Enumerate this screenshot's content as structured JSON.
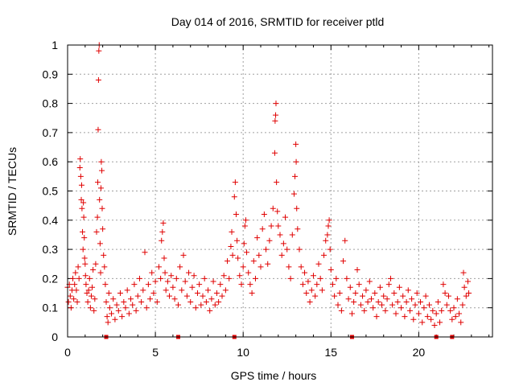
{
  "chart_data": {
    "type": "scatter",
    "title": "Day 014 of 2016, SRMTID for receiver ptld",
    "xlabel": "GPS time / hours",
    "ylabel": "SRMTID / TECUs",
    "xlim": [
      0,
      24.2
    ],
    "ylim": [
      0,
      1
    ],
    "grid": true,
    "marker": "plus",
    "color": "#e00000",
    "x_ticks": [
      "0",
      "5",
      "10",
      "15",
      "20"
    ],
    "x_tick_values": [
      0,
      5,
      10,
      15,
      20
    ],
    "y_ticks": [
      "0",
      "0.1",
      "0.2",
      "0.3",
      "0.4",
      "0.5",
      "0.6",
      "0.7",
      "0.8",
      "0.9",
      "1"
    ],
    "y_tick_values": [
      0,
      0.1,
      0.2,
      0.3,
      0.4,
      0.5,
      0.6,
      0.7,
      0.8,
      0.9,
      1
    ],
    "series": [
      {
        "name": "SRMTID",
        "points": [
          [
            0.0,
            0.17
          ],
          [
            0.05,
            0.12
          ],
          [
            0.1,
            0.18
          ],
          [
            0.15,
            0.14
          ],
          [
            0.2,
            0.1
          ],
          [
            0.25,
            0.16
          ],
          [
            0.3,
            0.2
          ],
          [
            0.35,
            0.13
          ],
          [
            0.4,
            0.18
          ],
          [
            0.45,
            0.22
          ],
          [
            0.5,
            0.16
          ],
          [
            0.55,
            0.12
          ],
          [
            0.6,
            0.24
          ],
          [
            0.65,
            0.2
          ],
          [
            0.7,
            0.58
          ],
          [
            0.72,
            0.61
          ],
          [
            0.75,
            0.55
          ],
          [
            0.78,
            0.47
          ],
          [
            0.8,
            0.52
          ],
          [
            0.82,
            0.44
          ],
          [
            0.85,
            0.36
          ],
          [
            0.88,
            0.3
          ],
          [
            0.9,
            0.46
          ],
          [
            0.92,
            0.41
          ],
          [
            0.95,
            0.34
          ],
          [
            0.97,
            0.27
          ],
          [
            1.0,
            0.25
          ],
          [
            1.02,
            0.21
          ],
          [
            1.05,
            0.18
          ],
          [
            1.1,
            0.15
          ],
          [
            1.15,
            0.12
          ],
          [
            1.2,
            0.16
          ],
          [
            1.25,
            0.2
          ],
          [
            1.3,
            0.1
          ],
          [
            1.35,
            0.14
          ],
          [
            1.4,
            0.17
          ],
          [
            1.45,
            0.23
          ],
          [
            1.5,
            0.09
          ],
          [
            1.55,
            0.13
          ],
          [
            1.6,
            0.25
          ],
          [
            1.65,
            0.36
          ],
          [
            1.7,
            0.41
          ],
          [
            1.72,
            0.53
          ],
          [
            1.74,
            0.71
          ],
          [
            1.76,
            0.88
          ],
          [
            1.78,
            0.98
          ],
          [
            1.8,
            1.0
          ],
          [
            1.82,
            0.47
          ],
          [
            1.85,
            0.32
          ],
          [
            1.88,
            0.22
          ],
          [
            1.9,
            0.51
          ],
          [
            1.92,
            0.6
          ],
          [
            1.95,
            0.57
          ],
          [
            1.97,
            0.44
          ],
          [
            2.0,
            0.37
          ],
          [
            2.05,
            0.28
          ],
          [
            2.1,
            0.24
          ],
          [
            2.15,
            0.18
          ],
          [
            2.2,
            0.12
          ],
          [
            2.25,
            0.07
          ],
          [
            2.3,
            0.05
          ],
          [
            2.35,
            0.15
          ],
          [
            2.4,
            0.1
          ],
          [
            2.5,
            0.08
          ],
          [
            2.6,
            0.13
          ],
          [
            2.7,
            0.06
          ],
          [
            2.8,
            0.11
          ],
          [
            2.9,
            0.09
          ],
          [
            3.0,
            0.15
          ],
          [
            3.1,
            0.07
          ],
          [
            3.2,
            0.12
          ],
          [
            3.3,
            0.1
          ],
          [
            3.4,
            0.16
          ],
          [
            3.5,
            0.08
          ],
          [
            3.6,
            0.13
          ],
          [
            3.7,
            0.11
          ],
          [
            3.8,
            0.18
          ],
          [
            3.9,
            0.09
          ],
          [
            4.0,
            0.14
          ],
          [
            4.1,
            0.2
          ],
          [
            4.2,
            0.12
          ],
          [
            4.3,
            0.16
          ],
          [
            4.4,
            0.29
          ],
          [
            4.5,
            0.1
          ],
          [
            4.6,
            0.18
          ],
          [
            4.7,
            0.13
          ],
          [
            4.8,
            0.22
          ],
          [
            4.9,
            0.15
          ],
          [
            5.0,
            0.19
          ],
          [
            5.1,
            0.12
          ],
          [
            5.2,
            0.24
          ],
          [
            5.3,
            0.2
          ],
          [
            5.35,
            0.33
          ],
          [
            5.4,
            0.36
          ],
          [
            5.45,
            0.39
          ],
          [
            5.5,
            0.27
          ],
          [
            5.55,
            0.22
          ],
          [
            5.6,
            0.16
          ],
          [
            5.7,
            0.19
          ],
          [
            5.8,
            0.14
          ],
          [
            5.9,
            0.21
          ],
          [
            6.0,
            0.17
          ],
          [
            6.1,
            0.13
          ],
          [
            6.2,
            0.2
          ],
          [
            6.3,
            0.11
          ],
          [
            6.4,
            0.24
          ],
          [
            6.5,
            0.16
          ],
          [
            6.6,
            0.28
          ],
          [
            6.7,
            0.19
          ],
          [
            6.8,
            0.14
          ],
          [
            6.9,
            0.22
          ],
          [
            7.0,
            0.12
          ],
          [
            7.1,
            0.17
          ],
          [
            7.2,
            0.21
          ],
          [
            7.3,
            0.1
          ],
          [
            7.4,
            0.15
          ],
          [
            7.5,
            0.18
          ],
          [
            7.6,
            0.11
          ],
          [
            7.7,
            0.14
          ],
          [
            7.8,
            0.2
          ],
          [
            7.9,
            0.12
          ],
          [
            8.0,
            0.16
          ],
          [
            8.1,
            0.09
          ],
          [
            8.2,
            0.13
          ],
          [
            8.3,
            0.19
          ],
          [
            8.4,
            0.11
          ],
          [
            8.5,
            0.15
          ],
          [
            8.6,
            0.12
          ],
          [
            8.7,
            0.18
          ],
          [
            8.8,
            0.14
          ],
          [
            8.9,
            0.21
          ],
          [
            9.0,
            0.16
          ],
          [
            9.1,
            0.26
          ],
          [
            9.2,
            0.2
          ],
          [
            9.3,
            0.31
          ],
          [
            9.35,
            0.36
          ],
          [
            9.4,
            0.28
          ],
          [
            9.5,
            0.48
          ],
          [
            9.55,
            0.53
          ],
          [
            9.6,
            0.42
          ],
          [
            9.65,
            0.33
          ],
          [
            9.7,
            0.27
          ],
          [
            9.8,
            0.21
          ],
          [
            9.9,
            0.18
          ],
          [
            10.0,
            0.24
          ],
          [
            10.05,
            0.32
          ],
          [
            10.1,
            0.38
          ],
          [
            10.15,
            0.4
          ],
          [
            10.2,
            0.29
          ],
          [
            10.3,
            0.22
          ],
          [
            10.4,
            0.18
          ],
          [
            10.5,
            0.15
          ],
          [
            10.6,
            0.26
          ],
          [
            10.7,
            0.2
          ],
          [
            10.8,
            0.34
          ],
          [
            10.9,
            0.28
          ],
          [
            11.0,
            0.24
          ],
          [
            11.1,
            0.37
          ],
          [
            11.2,
            0.42
          ],
          [
            11.3,
            0.3
          ],
          [
            11.4,
            0.25
          ],
          [
            11.5,
            0.33
          ],
          [
            11.6,
            0.38
          ],
          [
            11.7,
            0.44
          ],
          [
            11.8,
            0.63
          ],
          [
            11.82,
            0.74
          ],
          [
            11.85,
            0.76
          ],
          [
            11.87,
            0.8
          ],
          [
            11.9,
            0.53
          ],
          [
            11.95,
            0.43
          ],
          [
            12.0,
            0.38
          ],
          [
            12.1,
            0.35
          ],
          [
            12.2,
            0.28
          ],
          [
            12.3,
            0.32
          ],
          [
            12.4,
            0.41
          ],
          [
            12.5,
            0.3
          ],
          [
            12.6,
            0.24
          ],
          [
            12.7,
            0.2
          ],
          [
            12.8,
            0.35
          ],
          [
            12.9,
            0.49
          ],
          [
            12.95,
            0.55
          ],
          [
            13.0,
            0.66
          ],
          [
            13.02,
            0.6
          ],
          [
            13.05,
            0.44
          ],
          [
            13.1,
            0.37
          ],
          [
            13.2,
            0.3
          ],
          [
            13.3,
            0.24
          ],
          [
            13.4,
            0.18
          ],
          [
            13.5,
            0.22
          ],
          [
            13.6,
            0.15
          ],
          [
            13.7,
            0.19
          ],
          [
            13.8,
            0.12
          ],
          [
            13.9,
            0.16
          ],
          [
            14.0,
            0.21
          ],
          [
            14.1,
            0.14
          ],
          [
            14.2,
            0.18
          ],
          [
            14.3,
            0.25
          ],
          [
            14.4,
            0.2
          ],
          [
            14.5,
            0.16
          ],
          [
            14.6,
            0.28
          ],
          [
            14.7,
            0.33
          ],
          [
            14.8,
            0.35
          ],
          [
            14.85,
            0.38
          ],
          [
            14.9,
            0.4
          ],
          [
            14.95,
            0.3
          ],
          [
            15.0,
            0.23
          ],
          [
            15.1,
            0.18
          ],
          [
            15.2,
            0.14
          ],
          [
            15.3,
            0.2
          ],
          [
            15.4,
            0.11
          ],
          [
            15.5,
            0.15
          ],
          [
            15.6,
            0.09
          ],
          [
            15.7,
            0.26
          ],
          [
            15.8,
            0.33
          ],
          [
            15.9,
            0.2
          ],
          [
            16.0,
            0.13
          ],
          [
            16.1,
            0.17
          ],
          [
            16.2,
            0.08
          ],
          [
            16.3,
            0.12
          ],
          [
            16.4,
            0.15
          ],
          [
            16.5,
            0.23
          ],
          [
            16.6,
            0.18
          ],
          [
            16.7,
            0.11
          ],
          [
            16.8,
            0.14
          ],
          [
            16.9,
            0.09
          ],
          [
            17.0,
            0.16
          ],
          [
            17.1,
            0.12
          ],
          [
            17.2,
            0.19
          ],
          [
            17.3,
            0.13
          ],
          [
            17.4,
            0.1
          ],
          [
            17.5,
            0.15
          ],
          [
            17.6,
            0.07
          ],
          [
            17.7,
            0.12
          ],
          [
            17.8,
            0.17
          ],
          [
            17.9,
            0.11
          ],
          [
            18.0,
            0.14
          ],
          [
            18.1,
            0.09
          ],
          [
            18.2,
            0.13
          ],
          [
            18.3,
            0.18
          ],
          [
            18.4,
            0.2
          ],
          [
            18.5,
            0.11
          ],
          [
            18.6,
            0.15
          ],
          [
            18.7,
            0.08
          ],
          [
            18.8,
            0.12
          ],
          [
            18.9,
            0.17
          ],
          [
            19.0,
            0.1
          ],
          [
            19.1,
            0.14
          ],
          [
            19.2,
            0.07
          ],
          [
            19.3,
            0.12
          ],
          [
            19.4,
            0.16
          ],
          [
            19.5,
            0.09
          ],
          [
            19.6,
            0.13
          ],
          [
            19.7,
            0.06
          ],
          [
            19.8,
            0.11
          ],
          [
            19.9,
            0.15
          ],
          [
            20.0,
            0.08
          ],
          [
            20.1,
            0.12
          ],
          [
            20.2,
            0.05
          ],
          [
            20.3,
            0.1
          ],
          [
            20.4,
            0.14
          ],
          [
            20.5,
            0.07
          ],
          [
            20.6,
            0.11
          ],
          [
            20.7,
            0.06
          ],
          [
            20.8,
            0.09
          ],
          [
            20.9,
            0.04
          ],
          [
            21.0,
            0.08
          ],
          [
            21.1,
            0.12
          ],
          [
            21.2,
            0.05
          ],
          [
            21.3,
            0.09
          ],
          [
            21.4,
            0.18
          ],
          [
            21.5,
            0.15
          ],
          [
            21.6,
            0.11
          ],
          [
            21.7,
            0.14
          ],
          [
            21.8,
            0.09
          ],
          [
            21.9,
            0.06
          ],
          [
            22.0,
            0.1
          ],
          [
            22.1,
            0.07
          ],
          [
            22.2,
            0.13
          ],
          [
            22.3,
            0.08
          ],
          [
            22.4,
            0.05
          ],
          [
            22.5,
            0.11
          ],
          [
            22.55,
            0.22
          ],
          [
            22.6,
            0.17
          ],
          [
            22.7,
            0.14
          ],
          [
            22.8,
            0.19
          ],
          [
            22.85,
            0.15
          ]
        ]
      }
    ],
    "zero_markers_x": [
      2.2,
      6.3,
      9.5,
      16.2,
      21.0,
      21.9
    ]
  }
}
